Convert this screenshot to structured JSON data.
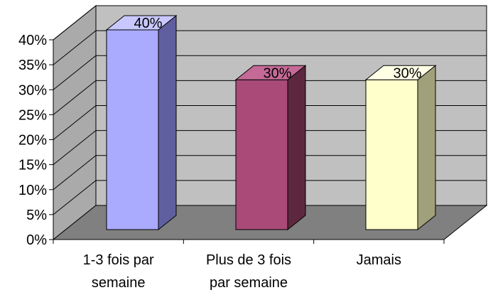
{
  "chart_data": {
    "type": "bar",
    "style": "3d-column",
    "categories": [
      [
        "1-3 fois par",
        "semaine"
      ],
      [
        "Plus de 3 fois",
        "par semaine"
      ],
      [
        "Jamais"
      ]
    ],
    "values": [
      40,
      30,
      30
    ],
    "data_labels": [
      "40%",
      "30%",
      "30%"
    ],
    "yticks": [
      "0%",
      "5%",
      "10%",
      "15%",
      "20%",
      "25%",
      "30%",
      "35%",
      "40%"
    ],
    "ylim": [
      0,
      40
    ],
    "grid": true,
    "legend": "none",
    "colors": {
      "bars": [
        {
          "front": "#aaaaff",
          "side": "#5f5fa0",
          "top": "#c8c8ff"
        },
        {
          "front": "#a94a79",
          "side": "#5e2740",
          "top": "#c56a97"
        },
        {
          "front": "#ffffcc",
          "side": "#a0a07a",
          "top": "#ffffe6"
        }
      ],
      "back_wall": "#c0c0c0",
      "side_wall": "#aaaaaa",
      "floor": "#808080",
      "gridline": "#000000"
    }
  }
}
